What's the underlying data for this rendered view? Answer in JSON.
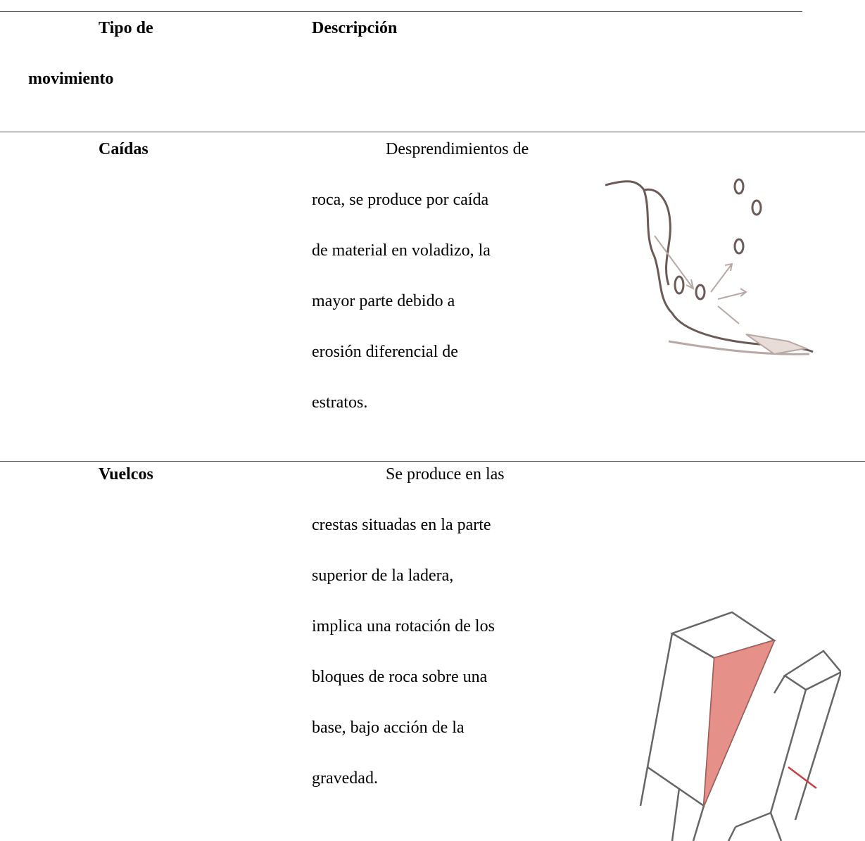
{
  "table": {
    "header": {
      "type": [
        "Tipo de",
        "movimiento"
      ],
      "description": "Descripción"
    },
    "rows": [
      {
        "type": "Caídas",
        "description": [
          "Desprendimientos de",
          "roca, se produce por caída",
          "de material en voladizo, la",
          "mayor parte debido a",
          "erosión diferencial de",
          "estratos."
        ]
      },
      {
        "type": "Vuelcos",
        "description": [
          "Se produce en las",
          "crestas situadas en la parte",
          "superior de la ladera,",
          "implica una rotación de los",
          "bloques de roca sobre una",
          "base, bajo acción de la",
          "gravedad."
        ]
      }
    ]
  }
}
